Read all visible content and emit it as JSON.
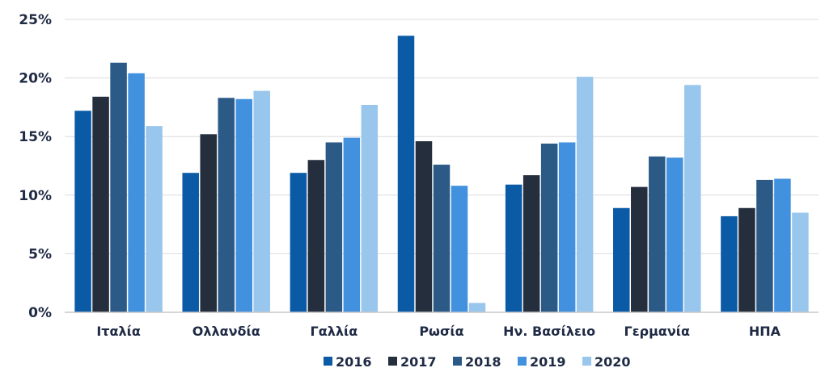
{
  "chart_data": {
    "type": "bar",
    "title": "",
    "xlabel": "",
    "ylabel": "",
    "categories": [
      "Ιταλία",
      "Ολλανδία",
      "Γαλλία",
      "Ρωσία",
      "Ην. Βασίλειο",
      "Γερμανία",
      "ΗΠΑ"
    ],
    "series": [
      {
        "name": "2016",
        "color": "#0b5aa6",
        "values": [
          17.2,
          11.9,
          11.9,
          23.6,
          10.9,
          8.9,
          8.2
        ]
      },
      {
        "name": "2017",
        "color": "#252e3d",
        "values": [
          18.4,
          15.2,
          13.0,
          14.6,
          11.7,
          10.7,
          8.9
        ]
      },
      {
        "name": "2018",
        "color": "#2c5a86",
        "values": [
          21.3,
          18.3,
          14.5,
          12.6,
          14.4,
          13.3,
          11.3
        ]
      },
      {
        "name": "2019",
        "color": "#4191de",
        "values": [
          20.4,
          18.2,
          14.9,
          10.8,
          14.5,
          13.2,
          11.4
        ]
      },
      {
        "name": "2020",
        "color": "#99c6ec",
        "values": [
          15.9,
          18.9,
          17.7,
          0.8,
          20.1,
          19.4,
          8.5
        ]
      }
    ],
    "ylim": [
      0,
      25
    ],
    "yticks": [
      0,
      5,
      10,
      15,
      20,
      25
    ],
    "ytick_labels": [
      "0%",
      "5%",
      "10%",
      "15%",
      "20%",
      "25%"
    ],
    "grid": true,
    "legend": "bottom"
  }
}
